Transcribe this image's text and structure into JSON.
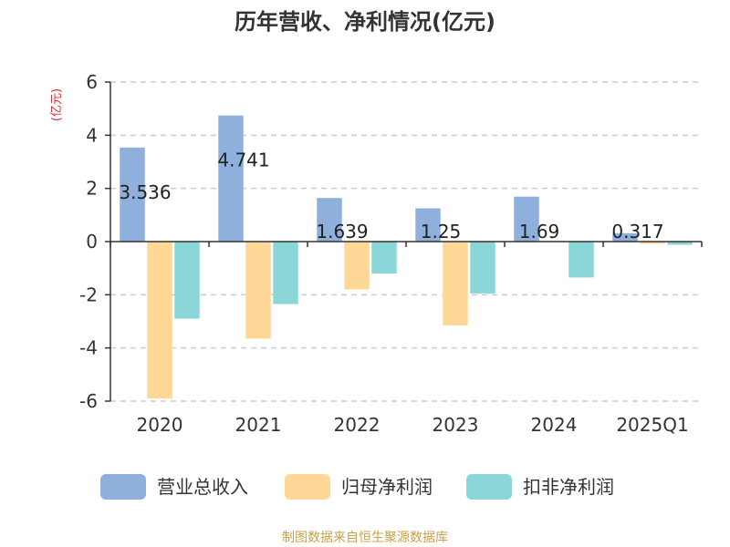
{
  "chart_data": {
    "type": "bar",
    "title": "历年营收、净利情况(亿元)",
    "ylabel": "(亿元)",
    "categories": [
      "2020",
      "2021",
      "2022",
      "2023",
      "2024",
      "2025Q1"
    ],
    "series": [
      {
        "name": "营业总收入",
        "values": [
          3.536,
          4.741,
          1.639,
          1.25,
          1.69,
          0.317
        ],
        "color": "#8fb0dc"
      },
      {
        "name": "归母净利润",
        "values": [
          -5.9,
          -3.65,
          -1.8,
          -3.15,
          0.03,
          -0.08
        ],
        "color": "#ffd797"
      },
      {
        "name": "扣非净利润",
        "values": [
          -2.9,
          -2.35,
          -1.2,
          -1.95,
          -1.35,
          -0.12
        ],
        "color": "#8ad6d8"
      }
    ],
    "data_labels": [
      "3.536",
      "4.741",
      "1.639",
      "1.25",
      "1.69",
      "0.317"
    ],
    "ylim": [
      -6,
      6
    ],
    "yticks": [
      "-6",
      "-4",
      "-2",
      "0",
      "2",
      "4",
      "6"
    ],
    "grid": true,
    "legend_position": "bottom",
    "source": "制图数据来自恒生聚源数据库",
    "colors": {
      "title": "#333333",
      "unit": "#e0252b",
      "source": "#c8a24a",
      "grid": "#cccccc",
      "axis": "#333333"
    }
  }
}
